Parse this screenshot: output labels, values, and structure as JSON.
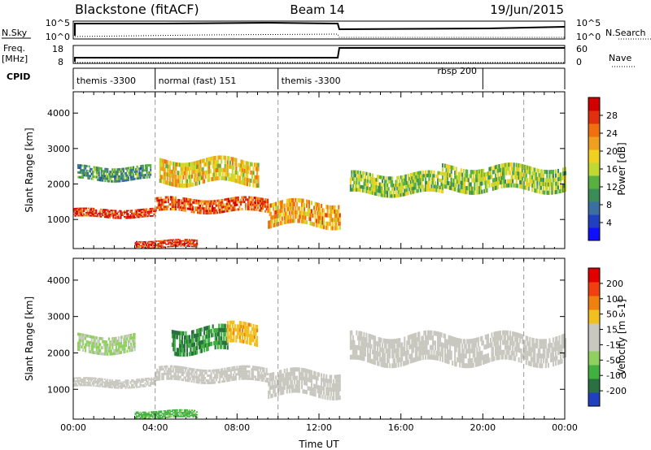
{
  "header": {
    "station": "Blackstone (fitACF)",
    "beam": "Beam 14",
    "date": "19/Jun/2015"
  },
  "summary_panels": {
    "nsky_label": "N.Sky",
    "nsky_ticks": [
      "10^5",
      "10^0"
    ],
    "nsearch_label": "N.Search",
    "nsearch_ticks": [
      "10^5",
      "10^0"
    ],
    "freq_label": "Freq.",
    "freq_unit": "[MHz]",
    "freq_ticks": [
      "18",
      "8"
    ],
    "nave_label": "Nave",
    "nave_ticks": [
      "60",
      "0"
    ],
    "cpid_label": "CPID",
    "cpid_segments": [
      {
        "label": "themis -3300",
        "start_hour": 0,
        "end_hour": 4
      },
      {
        "label": "normal (fast) 151",
        "start_hour": 4,
        "end_hour": 10
      },
      {
        "label": "themis -3300",
        "start_hour": 10,
        "end_hour": 20
      },
      {
        "label": "rbsp 200",
        "start_hour": 20,
        "end_hour": 24
      }
    ]
  },
  "chart_data": [
    {
      "type": "heatmap",
      "name": "power",
      "ylabel": "Slant Range [km]",
      "xlabel": "Time UT",
      "xlim_hours": [
        0,
        24
      ],
      "ylim": [
        180,
        4600
      ],
      "yticks": [
        1000,
        2000,
        3000,
        4000
      ],
      "colorbar": {
        "label": "Power [dB]",
        "ticks": [
          "4",
          "8",
          "12",
          "16",
          "20",
          "24",
          "28"
        ],
        "range": [
          0,
          30
        ],
        "colors": [
          "#1010ff",
          "#2040c0",
          "#3a6fa0",
          "#3c8c58",
          "#58b040",
          "#c0d830",
          "#f0d020",
          "#f0a020",
          "#f07010",
          "#e03010",
          "#d00000"
        ]
      },
      "bands": [
        {
          "t_start": 0,
          "t_end": 4,
          "range_start": 1050,
          "range_end": 1300,
          "value": 26
        },
        {
          "t_start": 4,
          "t_end": 9.5,
          "range_start": 1200,
          "range_end": 1600,
          "value": 24
        },
        {
          "t_start": 9.5,
          "t_end": 13,
          "range_start": 800,
          "range_end": 1500,
          "value": 20
        },
        {
          "t_start": 4.2,
          "t_end": 9,
          "range_start": 2000,
          "range_end": 2700,
          "value": 18
        },
        {
          "t_start": 0.2,
          "t_end": 3.8,
          "range_start": 2100,
          "range_end": 2500,
          "value": 10
        },
        {
          "t_start": 13.5,
          "t_end": 18,
          "range_start": 1700,
          "range_end": 2300,
          "value": 14
        },
        {
          "t_start": 18,
          "t_end": 24,
          "range_start": 1800,
          "range_end": 2500,
          "value": 14
        },
        {
          "t_start": 3,
          "t_end": 6,
          "range_start": 200,
          "range_end": 420,
          "value": 26
        }
      ]
    },
    {
      "type": "heatmap",
      "name": "velocity",
      "ylabel": "Slant Range [km]",
      "xlabel": "Time UT",
      "xlim_hours": [
        0,
        24
      ],
      "ylim": [
        180,
        4600
      ],
      "yticks": [
        1000,
        2000,
        3000,
        4000
      ],
      "xticks": [
        "00:00",
        "04:00",
        "08:00",
        "12:00",
        "16:00",
        "20:00",
        "00:00"
      ],
      "colorbar": {
        "label": "Velocity [m s-1]",
        "ticks": [
          "200",
          "100",
          "50",
          "15",
          "-15",
          "-50",
          "-100",
          "-200"
        ],
        "range": [
          -250,
          250
        ],
        "colors": [
          "#2040c0",
          "#2a7040",
          "#40b040",
          "#90d060",
          "#c8c8c0",
          "#c8c8c0",
          "#f0c020",
          "#f08010",
          "#f04010",
          "#e00000"
        ]
      },
      "bands": [
        {
          "t_start": 0,
          "t_end": 4,
          "range_start": 1050,
          "range_end": 1300,
          "value": 0
        },
        {
          "t_start": 4,
          "t_end": 9.5,
          "range_start": 1200,
          "range_end": 1600,
          "value": 0
        },
        {
          "t_start": 9.5,
          "t_end": 13,
          "range_start": 800,
          "range_end": 1500,
          "value": 0
        },
        {
          "t_start": 4.8,
          "t_end": 7.5,
          "range_start": 2000,
          "range_end": 2700,
          "value": -150
        },
        {
          "t_start": 7.5,
          "t_end": 9,
          "range_start": 2200,
          "range_end": 2800,
          "value": 80
        },
        {
          "t_start": 0.2,
          "t_end": 3,
          "range_start": 2000,
          "range_end": 2500,
          "value": -60
        },
        {
          "t_start": 13.5,
          "t_end": 24,
          "range_start": 1700,
          "range_end": 2500,
          "value": 0
        },
        {
          "t_start": 3,
          "t_end": 6,
          "range_start": 200,
          "range_end": 420,
          "value": -120
        }
      ]
    }
  ]
}
